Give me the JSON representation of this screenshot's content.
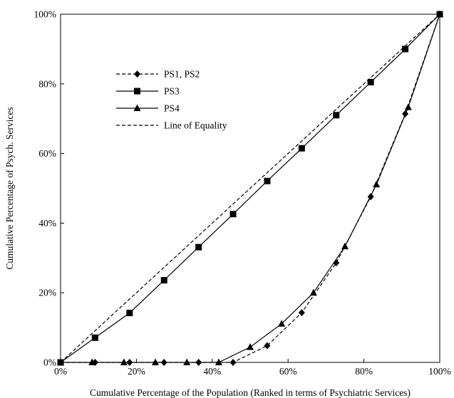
{
  "chart_data": {
    "type": "line",
    "xlabel": "Cumulative Percentage of the Population (Ranked in terms of Psychiatric Services)",
    "ylabel": "Cumulative Percentage of Psych. Services",
    "xlim": [
      0,
      100
    ],
    "ylim": [
      0,
      100
    ],
    "x_ticks": [
      "0%",
      "20%",
      "40%",
      "60%",
      "80%",
      "100%"
    ],
    "y_ticks": [
      "0%",
      "20%",
      "40%",
      "60%",
      "80%",
      "100%"
    ],
    "grid": false,
    "legend_position": "top-left",
    "series": [
      {
        "name": "PS1, PS2",
        "style": "dashed",
        "marker": "diamond",
        "points": [
          [
            0,
            0
          ],
          [
            9.1,
            0
          ],
          [
            18.2,
            0
          ],
          [
            27.3,
            0
          ],
          [
            36.4,
            0
          ],
          [
            45.5,
            0
          ],
          [
            54.5,
            4.8
          ],
          [
            63.6,
            14.3
          ],
          [
            72.7,
            28.6
          ],
          [
            81.8,
            47.6
          ],
          [
            90.9,
            71.4
          ],
          [
            100,
            100
          ]
        ]
      },
      {
        "name": "PS3",
        "style": "solid",
        "marker": "square",
        "points": [
          [
            0,
            0
          ],
          [
            9.1,
            7.1
          ],
          [
            18.2,
            14.2
          ],
          [
            27.3,
            23.6
          ],
          [
            36.4,
            33.1
          ],
          [
            45.5,
            42.6
          ],
          [
            54.5,
            52.1
          ],
          [
            63.6,
            61.5
          ],
          [
            72.7,
            71.0
          ],
          [
            81.8,
            80.5
          ],
          [
            90.9,
            90.0
          ],
          [
            100,
            100
          ]
        ]
      },
      {
        "name": "PS4",
        "style": "solid",
        "marker": "triangle",
        "points": [
          [
            0,
            0
          ],
          [
            8.3,
            0
          ],
          [
            16.7,
            0
          ],
          [
            25.0,
            0
          ],
          [
            33.3,
            0
          ],
          [
            41.7,
            0
          ],
          [
            50.0,
            4.4
          ],
          [
            58.3,
            11.1
          ],
          [
            66.7,
            20.0
          ],
          [
            75.0,
            33.3
          ],
          [
            83.3,
            51.1
          ],
          [
            91.7,
            73.3
          ],
          [
            100,
            100
          ]
        ]
      },
      {
        "name": "Line of Equality",
        "style": "dashed",
        "marker": "none",
        "points": [
          [
            0,
            0
          ],
          [
            100,
            100
          ]
        ]
      }
    ]
  }
}
